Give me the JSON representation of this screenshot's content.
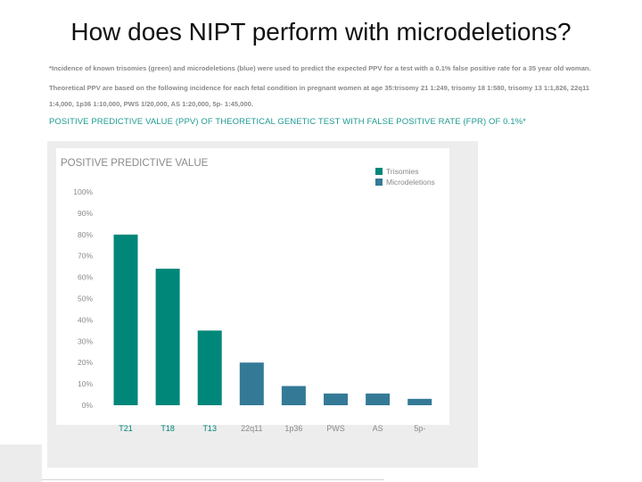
{
  "slide": {
    "title": "How does NIPT perform with microdeletions?",
    "note_1": "*Incidence of known trisomies (green) and microdeletions (blue) were used to predict the expected PPV for a test with a 0.1% false positive rate for a 35 year old woman.",
    "note_2": "Theoretical PPV are based on the following incidence for each fetal condition in pregnant women at age 35:trisomy 21 1:249, trisomy 18 1:580, trisomy 13 1:1,826, 22q11",
    "note_3": "1:4,000, 1p36 1:10,000, PWS 1/20,000, AS 1:20,000, 5p- 1:45,000.",
    "chart_heading": "POSITIVE PREDICTIVE VALUE (PPV) OF THEORETICAL GENETIC TEST WITH FALSE POSITIVE RATE (FPR) OF 0.1%*"
  },
  "colors": {
    "trisomies": "#00877a",
    "microdeletions": "#347a97",
    "heading_teal": "#1f9b92",
    "panel_bg": "#ededed",
    "plot_bg": "#ffffff"
  },
  "chart_data": {
    "type": "bar",
    "title": "POSITIVE PREDICTIVE VALUE",
    "categories": [
      "T21",
      "T18",
      "T13",
      "22q11",
      "1p36",
      "PWS",
      "AS",
      "5p-"
    ],
    "values": [
      80,
      64,
      35,
      20,
      9,
      5.5,
      5.5,
      3
    ],
    "groups": [
      "trisomies",
      "trisomies",
      "trisomies",
      "microdeletions",
      "microdeletions",
      "microdeletions",
      "microdeletions",
      "microdeletions"
    ],
    "legend": [
      {
        "key": "trisomies",
        "label": "Trisomies"
      },
      {
        "key": "microdeletions",
        "label": "Microdeletions"
      }
    ],
    "legend_position": "top-right",
    "yticks": [
      "0%",
      "10%",
      "20%",
      "30%",
      "40%",
      "50%",
      "60%",
      "70%",
      "80%",
      "90%",
      "100%"
    ],
    "ylim": [
      0,
      100
    ],
    "grid": false
  }
}
